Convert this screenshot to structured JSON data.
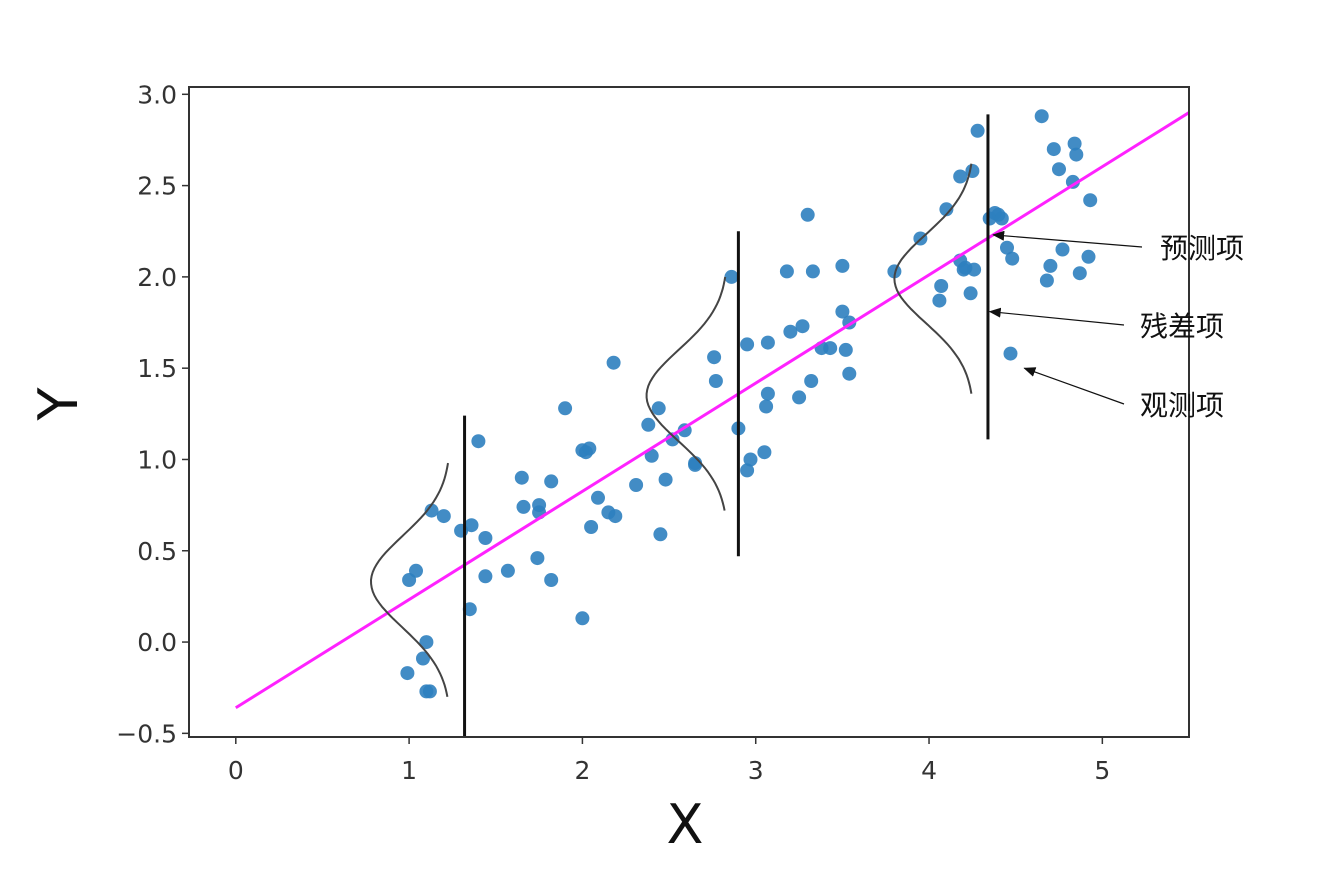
{
  "chart_data": {
    "type": "scatter",
    "xlabel": "X",
    "ylabel": "Y",
    "xlim": [
      -0.27,
      5.5
    ],
    "ylim": [
      -0.52,
      3.04
    ],
    "xticks": [
      0,
      1,
      2,
      3,
      4,
      5
    ],
    "yticks": [
      -0.5,
      0.0,
      0.5,
      1.0,
      1.5,
      2.0,
      2.5,
      3.0
    ],
    "xtick_labels": [
      "0",
      "1",
      "2",
      "3",
      "4",
      "5"
    ],
    "ytick_labels": [
      "−0.5",
      "0.0",
      "0.5",
      "1.0",
      "1.5",
      "2.0",
      "2.5",
      "3.0"
    ],
    "grid": false,
    "colors": {
      "points": "#2e7fbf",
      "regression_line": "#ff22ff",
      "residual_bars": "#111111",
      "density_curves": "#444444",
      "frame": "#333333"
    },
    "scatter_points": [
      [
        1.0,
        0.34
      ],
      [
        1.04,
        0.39
      ],
      [
        0.99,
        -0.17
      ],
      [
        1.08,
        -0.09
      ],
      [
        1.1,
        -0.27
      ],
      [
        1.12,
        -0.27
      ],
      [
        1.1,
        0.0
      ],
      [
        1.13,
        0.72
      ],
      [
        1.2,
        0.69
      ],
      [
        1.3,
        0.61
      ],
      [
        1.36,
        0.64
      ],
      [
        1.4,
        1.1
      ],
      [
        1.44,
        0.57
      ],
      [
        1.44,
        0.36
      ],
      [
        1.35,
        0.18
      ],
      [
        1.57,
        0.39
      ],
      [
        1.65,
        0.9
      ],
      [
        1.66,
        0.74
      ],
      [
        1.75,
        0.75
      ],
      [
        1.75,
        0.71
      ],
      [
        1.74,
        0.46
      ],
      [
        1.82,
        0.88
      ],
      [
        1.82,
        0.34
      ],
      [
        1.9,
        1.28
      ],
      [
        2.0,
        1.05
      ],
      [
        2.02,
        1.04
      ],
      [
        2.04,
        1.06
      ],
      [
        2.0,
        0.13
      ],
      [
        2.05,
        0.63
      ],
      [
        2.09,
        0.79
      ],
      [
        2.15,
        0.71
      ],
      [
        2.19,
        0.69
      ],
      [
        2.18,
        1.53
      ],
      [
        2.31,
        0.86
      ],
      [
        2.38,
        1.19
      ],
      [
        2.4,
        1.02
      ],
      [
        2.44,
        1.28
      ],
      [
        2.45,
        0.59
      ],
      [
        2.48,
        0.89
      ],
      [
        2.52,
        1.11
      ],
      [
        2.59,
        1.16
      ],
      [
        2.65,
        0.97
      ],
      [
        2.65,
        0.98
      ],
      [
        2.76,
        1.56
      ],
      [
        2.77,
        1.43
      ],
      [
        2.86,
        2.0
      ],
      [
        2.9,
        1.17
      ],
      [
        2.95,
        0.94
      ],
      [
        2.97,
        1.0
      ],
      [
        2.95,
        1.63
      ],
      [
        3.05,
        1.04
      ],
      [
        3.06,
        1.29
      ],
      [
        3.07,
        1.36
      ],
      [
        3.07,
        1.64
      ],
      [
        3.18,
        2.03
      ],
      [
        3.2,
        1.7
      ],
      [
        3.25,
        1.34
      ],
      [
        3.27,
        1.73
      ],
      [
        3.3,
        2.34
      ],
      [
        3.32,
        1.43
      ],
      [
        3.33,
        2.03
      ],
      [
        3.38,
        1.61
      ],
      [
        3.43,
        1.61
      ],
      [
        3.5,
        2.06
      ],
      [
        3.5,
        1.81
      ],
      [
        3.52,
        1.6
      ],
      [
        3.54,
        1.47
      ],
      [
        3.54,
        1.75
      ],
      [
        3.8,
        2.03
      ],
      [
        3.95,
        2.21
      ],
      [
        4.06,
        1.87
      ],
      [
        4.07,
        1.95
      ],
      [
        4.1,
        2.37
      ],
      [
        4.18,
        2.09
      ],
      [
        4.18,
        2.55
      ],
      [
        4.2,
        2.04
      ],
      [
        4.21,
        2.05
      ],
      [
        4.24,
        1.91
      ],
      [
        4.25,
        2.58
      ],
      [
        4.26,
        2.04
      ],
      [
        4.28,
        2.8
      ],
      [
        4.35,
        2.32
      ],
      [
        4.38,
        2.35
      ],
      [
        4.4,
        2.34
      ],
      [
        4.42,
        2.32
      ],
      [
        4.45,
        2.16
      ],
      [
        4.48,
        2.1
      ],
      [
        4.47,
        1.58
      ],
      [
        4.65,
        2.88
      ],
      [
        4.68,
        1.98
      ],
      [
        4.7,
        2.06
      ],
      [
        4.72,
        2.7
      ],
      [
        4.75,
        2.59
      ],
      [
        4.77,
        2.15
      ],
      [
        4.83,
        2.52
      ],
      [
        4.84,
        2.73
      ],
      [
        4.85,
        2.67
      ],
      [
        4.87,
        2.02
      ],
      [
        4.92,
        2.11
      ],
      [
        4.93,
        2.42
      ]
    ],
    "regression_line": {
      "x": [
        0.0,
        5.5
      ],
      "y": [
        -0.36,
        2.9
      ]
    },
    "residual_bars": [
      {
        "x": 1.32,
        "y_low": -0.52,
        "y_high": 1.24
      },
      {
        "x": 2.9,
        "y_low": 0.47,
        "y_high": 2.25
      },
      {
        "x": 4.34,
        "y_low": 1.11,
        "y_high": 2.89
      }
    ],
    "density_curves": [
      {
        "x_base": 1.24,
        "x_peak": 0.78,
        "y_low": -0.3,
        "y_center": 0.33,
        "y_high": 0.98
      },
      {
        "x_base": 2.84,
        "x_peak": 2.37,
        "y_low": 0.72,
        "y_center": 1.35,
        "y_high": 2.0
      },
      {
        "x_base": 4.26,
        "x_peak": 3.8,
        "y_low": 1.36,
        "y_center": 1.99,
        "y_high": 2.62
      }
    ],
    "annotations": [
      {
        "text": "预测项",
        "target": [
          4.37,
          2.23
        ]
      },
      {
        "text": "残差项",
        "target": [
          4.35,
          1.81
        ]
      },
      {
        "text": "观测项",
        "target": [
          4.55,
          1.5
        ]
      }
    ]
  }
}
